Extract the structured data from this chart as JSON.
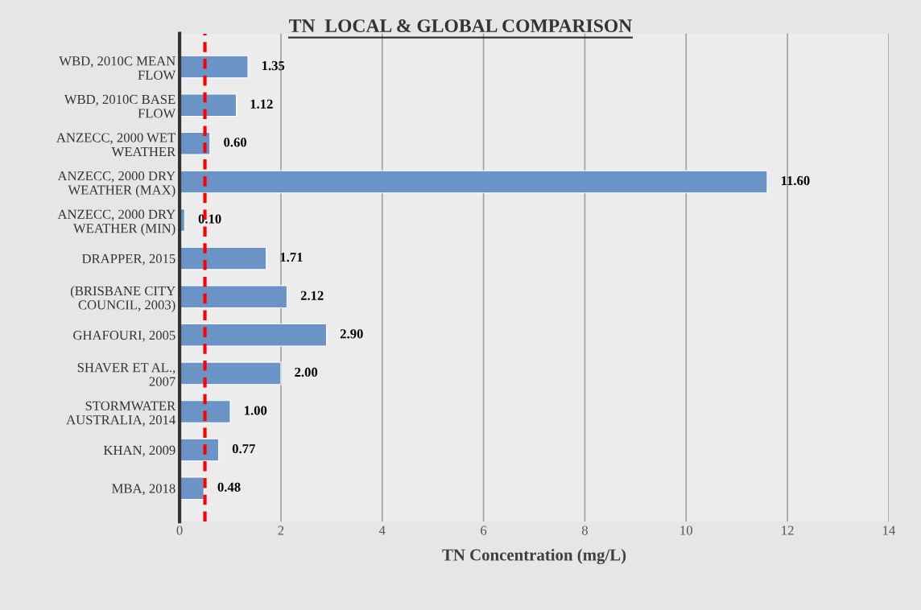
{
  "chart_data": {
    "type": "bar",
    "orientation": "horizontal",
    "title": "TN  LOCAL & GLOBAL COMPARISON",
    "xlabel": "TN Concentration (mg/L)",
    "categories": [
      "WBD, 2010C MEAN FLOW",
      "WBD, 2010C BASE FLOW",
      "ANZECC, 2000 WET WEATHER",
      "ANZECC, 2000 DRY WEATHER (MAX)",
      "ANZECC, 2000 DRY WEATHER (MIN)",
      "DRAPPER, 2015",
      "(BRISBANE CITY COUNCIL, 2003)",
      "GHAFOURI, 2005",
      "SHAVER ET AL., 2007",
      "STORMWATER AUSTRALIA, 2014",
      "KHAN, 2009",
      "MBA, 2018"
    ],
    "values": [
      1.35,
      1.12,
      0.6,
      11.6,
      0.1,
      1.71,
      2.12,
      2.9,
      2.0,
      1.0,
      0.77,
      0.48
    ],
    "value_labels": [
      "1.35",
      "1.12",
      "0.60",
      "11.60",
      "0.10",
      "1.71",
      "2.12",
      "2.90",
      "2.00",
      "1.00",
      "0.77",
      "0.48"
    ],
    "color": "#6a93c6",
    "xlim": [
      0,
      14
    ],
    "xticks": [
      0,
      2,
      4,
      6,
      8,
      10,
      12,
      14
    ],
    "grid": "x",
    "ref_lines": [
      {
        "axis": "x",
        "value": 0.5,
        "color": "#ff0000",
        "line_style": "dashed"
      }
    ]
  }
}
